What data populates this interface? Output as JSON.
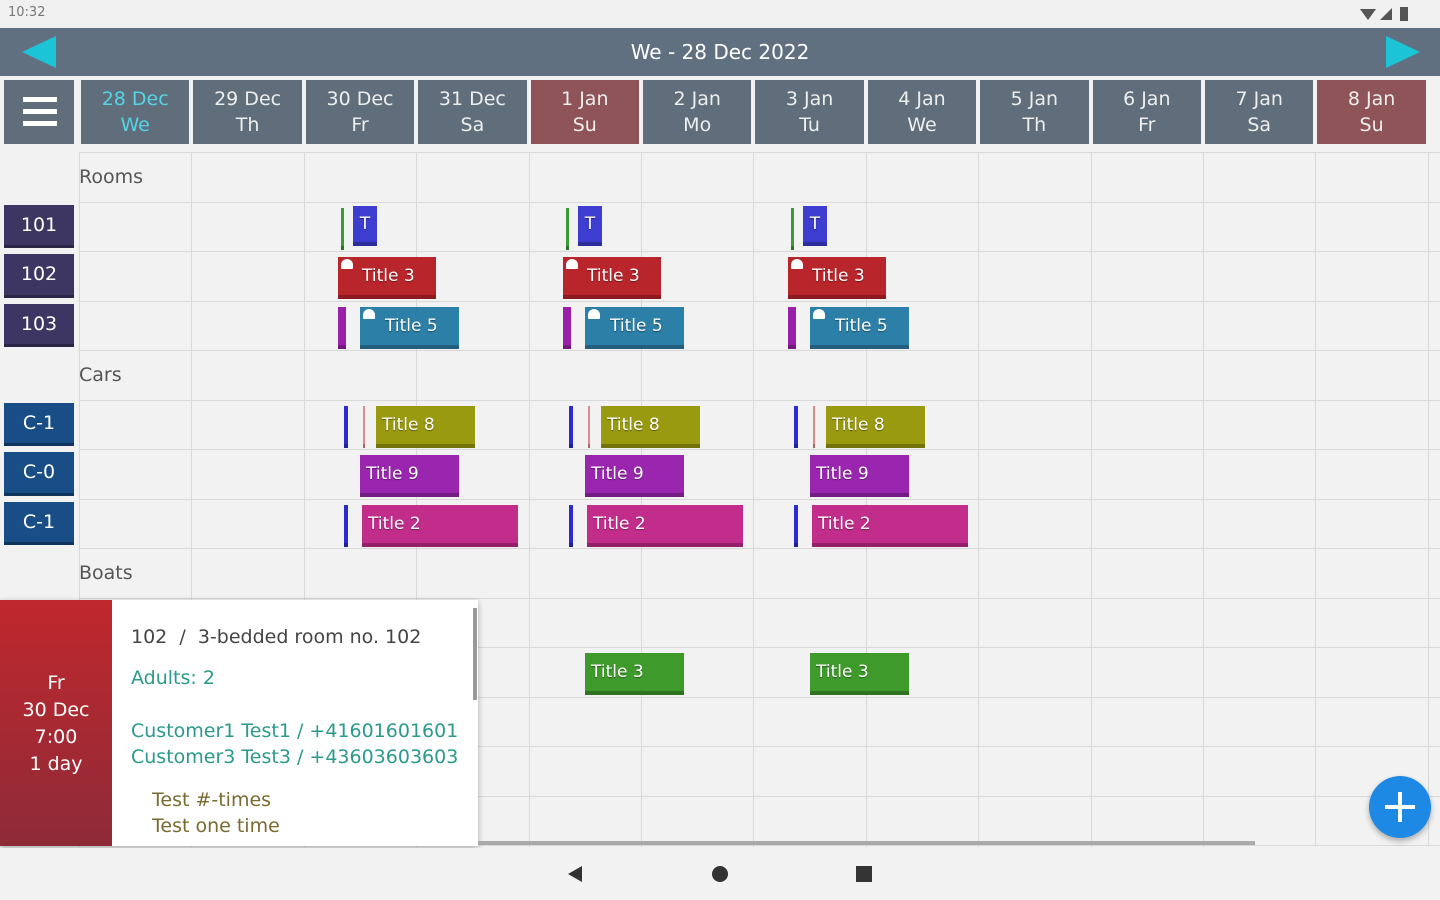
{
  "status_bar": {
    "time": "10:32"
  },
  "header": {
    "title": "We - 28 Dec 2022"
  },
  "days": [
    {
      "date": "28 Dec",
      "weekday": "We",
      "color": "#5f6e7a",
      "text_color": "#56d4e6"
    },
    {
      "date": "29 Dec",
      "weekday": "Th",
      "color": "#5f6e7a"
    },
    {
      "date": "30 Dec",
      "weekday": "Fr",
      "color": "#5f6e7a"
    },
    {
      "date": "31 Dec",
      "weekday": "Sa",
      "color": "#5f6e7a"
    },
    {
      "date": "1 Jan",
      "weekday": "Su",
      "color": "#8e5457"
    },
    {
      "date": "2 Jan",
      "weekday": "Mo",
      "color": "#5f6e7a"
    },
    {
      "date": "3 Jan",
      "weekday": "Tu",
      "color": "#5f6e7a"
    },
    {
      "date": "4 Jan",
      "weekday": "We",
      "color": "#5f6e7a"
    },
    {
      "date": "5 Jan",
      "weekday": "Th",
      "color": "#5f6e7a"
    },
    {
      "date": "6 Jan",
      "weekday": "Fr",
      "color": "#5f6e7a"
    },
    {
      "date": "7 Jan",
      "weekday": "Sa",
      "color": "#5f6e7a"
    },
    {
      "date": "8 Jan",
      "weekday": "Su",
      "color": "#8e5457"
    }
  ],
  "sections": [
    {
      "title": "Rooms",
      "label_color": "#3d3562",
      "rows": [
        {
          "label": "101",
          "events": [
            {
              "color": "#3a9a3a"
            },
            {
              "text": "T",
              "color": "#3d3dd0"
            },
            {
              "color": "#3a9a3a"
            },
            {
              "text": "T",
              "color": "#3d3dd0"
            },
            {
              "color": "#3a9a3a"
            },
            {
              "text": "T",
              "color": "#3d3dd0"
            }
          ]
        },
        {
          "label": "102",
          "events": [
            {
              "text": "Title 3",
              "color": "#b8262c"
            },
            {
              "text": "Title 3",
              "color": "#b8262c"
            },
            {
              "text": "Title 3",
              "color": "#b8262c"
            }
          ]
        },
        {
          "label": "103",
          "events": [
            {
              "color": "#9b20a8"
            },
            {
              "text": "Title 5",
              "color": "#2c7fa6"
            },
            {
              "color": "#9b20a8"
            },
            {
              "text": "Title 5",
              "color": "#2c7fa6"
            },
            {
              "color": "#9b20a8"
            },
            {
              "text": "Title 5",
              "color": "#2c7fa6"
            }
          ]
        }
      ]
    },
    {
      "title": "Cars",
      "label_color": "#184d86",
      "rows": [
        {
          "label": "C-1",
          "events": [
            {
              "color": "#2b2bd0"
            },
            {
              "color": "#e08a8a"
            },
            {
              "text": "Title 8",
              "color": "#9a9a10"
            },
            {
              "color": "#2b2bd0"
            },
            {
              "color": "#e08a8a"
            },
            {
              "text": "Title 8",
              "color": "#9a9a10"
            },
            {
              "color": "#2b2bd0"
            },
            {
              "color": "#e08a8a"
            },
            {
              "text": "Title 8",
              "color": "#9a9a10"
            }
          ]
        },
        {
          "label": "C-0",
          "events": [
            {
              "text": "Title 9",
              "color": "#9a26b0"
            },
            {
              "text": "Title 9",
              "color": "#9a26b0"
            },
            {
              "text": "Title 9",
              "color": "#9a26b0"
            }
          ]
        },
        {
          "label": "C-1",
          "events": [
            {
              "color": "#2b2bd0"
            },
            {
              "text": "Title 2",
              "color": "#c22d8c"
            },
            {
              "color": "#2b2bd0"
            },
            {
              "text": "Title 2",
              "color": "#c22d8c"
            },
            {
              "color": "#2b2bd0"
            },
            {
              "text": "Title 2",
              "color": "#c22d8c"
            }
          ]
        }
      ]
    },
    {
      "title": "Boats",
      "label_color": "#2b6b2b",
      "events": [
        {
          "text": "Title 3",
          "color": "#3f9a2c"
        },
        {
          "text": "Title 3",
          "color": "#3f9a2c"
        }
      ]
    }
  ],
  "popup": {
    "side": [
      "Fr",
      "30 Dec",
      "7:00",
      "1 day"
    ],
    "title": "102  /  3-bedded room no. 102",
    "adults": "Adults: 2",
    "customers": [
      "Customer1 Test1 / +41601601601",
      "Customer3 Test3 / +43603603603"
    ],
    "notes": [
      "Test #-times",
      "Test one time"
    ]
  }
}
